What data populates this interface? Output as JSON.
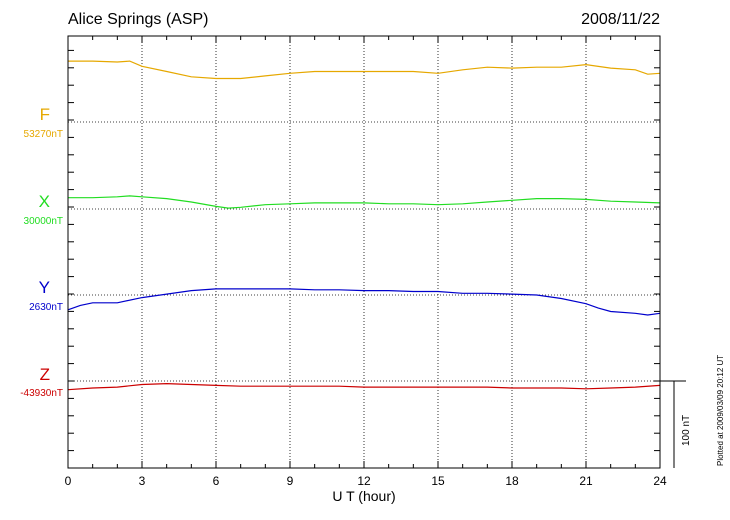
{
  "header": {
    "station": "Alice Springs (ASP)",
    "date": "2008/11/22"
  },
  "footer": {
    "plotted_note": "Plotted at 2009/03/09 20:12 UT",
    "scale_label": "100 nT"
  },
  "chart_data": {
    "type": "line",
    "title": "Alice Springs (ASP)",
    "date": "2008/11/22",
    "xlabel": "U T (hour)",
    "xlim": [
      0,
      24
    ],
    "xticks": [
      "0",
      "3",
      "6",
      "9",
      "12",
      "15",
      "18",
      "21",
      "24"
    ],
    "grid": "dotted vertical every 3 h, dotted baseline per channel",
    "scale_bar_nT": 100,
    "series": [
      {
        "name": "F",
        "baseline_label": "53270nT",
        "baseline": 53270,
        "color": "#e6a800",
        "x": [
          0,
          1,
          2,
          2.5,
          3,
          4,
          5,
          6,
          7,
          8,
          9,
          10,
          11,
          12,
          13,
          14,
          15,
          16,
          17,
          18,
          19,
          20,
          21,
          22,
          23,
          23.5,
          24
        ],
        "y": [
          53340,
          53340,
          53339,
          53340,
          53334,
          53328,
          53322,
          53320,
          53320,
          53323,
          53326,
          53328,
          53328,
          53328,
          53328,
          53328,
          53326,
          53330,
          53333,
          53332,
          53333,
          53333,
          53336,
          53332,
          53330,
          53325,
          53326
        ]
      },
      {
        "name": "X",
        "baseline_label": "30000nT",
        "baseline": 30000,
        "color": "#22dd22",
        "x": [
          0,
          1,
          2,
          2.5,
          3,
          4,
          5,
          6,
          6.5,
          7,
          8,
          9,
          10,
          11,
          12,
          13,
          14,
          15,
          16,
          17,
          18,
          19,
          20,
          21,
          22,
          23,
          24
        ],
        "y": [
          30013,
          30013,
          30014,
          30015,
          30014,
          30012,
          30008,
          30003,
          30001,
          30002,
          30005,
          30006,
          30007,
          30007,
          30007,
          30006,
          30006,
          30005,
          30006,
          30008,
          30010,
          30012,
          30012,
          30011,
          30009,
          30008,
          30007
        ]
      },
      {
        "name": "Y",
        "baseline_label": "2630nT",
        "baseline": 2630,
        "color": "#0000cc",
        "x": [
          0,
          0.5,
          1,
          2,
          3,
          4,
          5,
          6,
          7,
          8,
          9,
          10,
          11,
          12,
          13,
          14,
          15,
          16,
          17,
          18,
          19,
          20,
          21,
          21.5,
          22,
          23,
          23.5,
          24
        ],
        "y": [
          2613,
          2618,
          2621,
          2621,
          2627,
          2631,
          2635,
          2637,
          2637,
          2637,
          2637,
          2636,
          2636,
          2635,
          2635,
          2634,
          2634,
          2632,
          2632,
          2631,
          2630,
          2626,
          2620,
          2615,
          2611,
          2609,
          2607,
          2609
        ]
      },
      {
        "name": "Z",
        "baseline_label": "-43930nT",
        "baseline": -43930,
        "color": "#cc0000",
        "x": [
          0,
          1,
          2,
          3,
          4,
          5,
          6,
          7,
          8,
          9,
          10,
          11,
          12,
          13,
          14,
          15,
          16,
          17,
          18,
          19,
          20,
          21,
          22,
          23,
          24
        ],
        "y": [
          -43940,
          -43938,
          -43937,
          -43934,
          -43933,
          -43934,
          -43935,
          -43936,
          -43936,
          -43936,
          -43936,
          -43936,
          -43937,
          -43937,
          -43937,
          -43937,
          -43937,
          -43937,
          -43938,
          -43938,
          -43938,
          -43939,
          -43938,
          -43937,
          -43935
        ]
      }
    ]
  }
}
